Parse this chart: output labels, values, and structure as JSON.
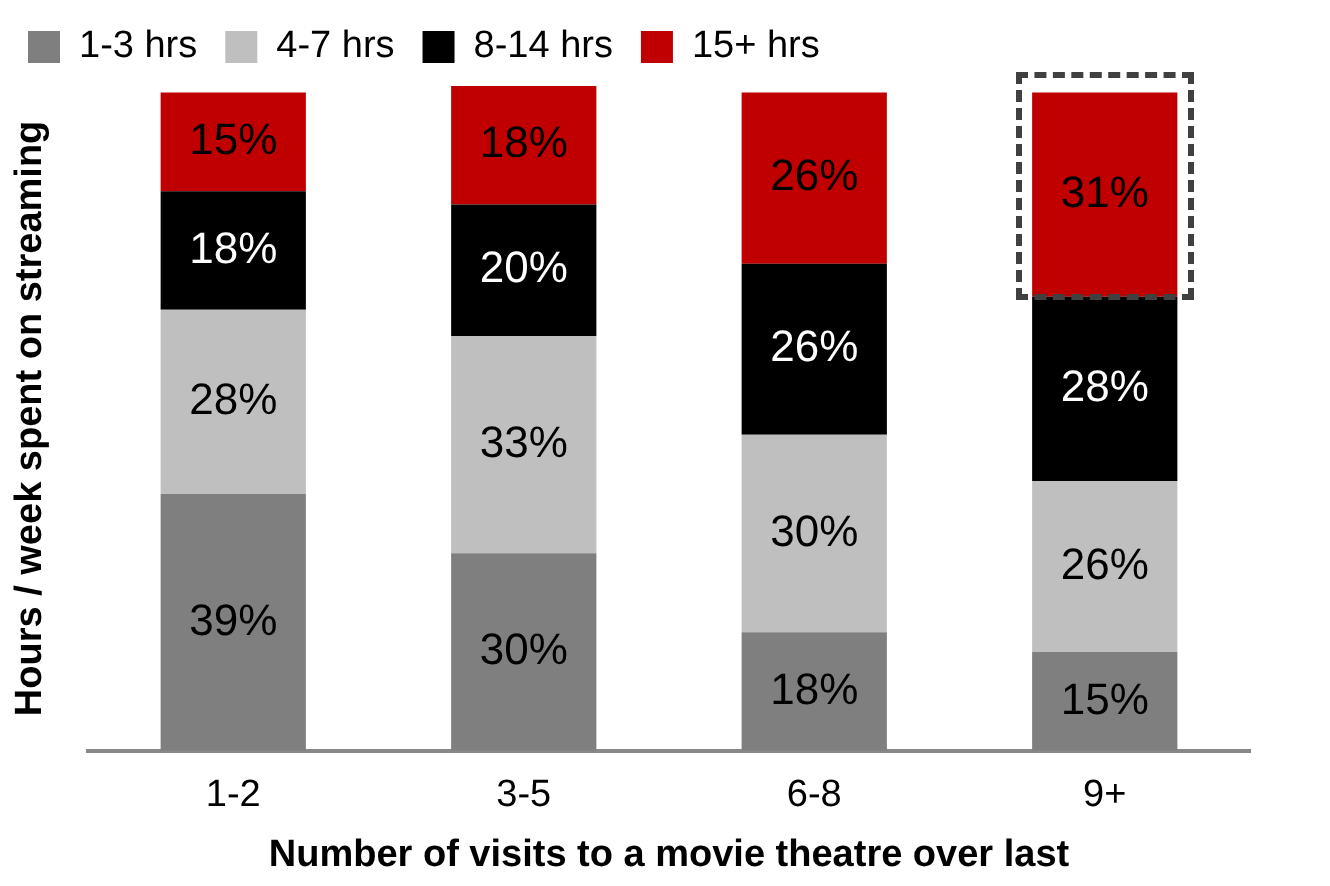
{
  "chart_data": {
    "type": "bar",
    "stacked": true,
    "xlabel": "Number of visits to a movie theatre over last",
    "ylabel": "Hours / week spent on streaming",
    "categories": [
      "1-2",
      "3-5",
      "6-8",
      "9+"
    ],
    "series": [
      {
        "name": "1-3 hrs",
        "color": "#7f7f7f",
        "values": [
          39,
          30,
          18,
          15
        ],
        "value_labels": [
          "39%",
          "30%",
          "18%",
          "15%"
        ]
      },
      {
        "name": "4-7 hrs",
        "color": "#bfbfbf",
        "values": [
          28,
          33,
          30,
          26
        ],
        "value_labels": [
          "28%",
          "33%",
          "30%",
          "26%"
        ]
      },
      {
        "name": "8-14 hrs",
        "color": "#000000",
        "values": [
          18,
          20,
          26,
          28
        ],
        "value_labels": [
          "18%",
          "20%",
          "26%",
          "28%"
        ]
      },
      {
        "name": "15+ hrs",
        "color": "#c00000",
        "values": [
          15,
          18,
          26,
          31
        ],
        "value_labels": [
          "15%",
          "18%",
          "26%",
          "31%"
        ]
      }
    ],
    "ylim": [
      0,
      101
    ],
    "tick_labels": "x",
    "grid": false,
    "legend": "top"
  }
}
